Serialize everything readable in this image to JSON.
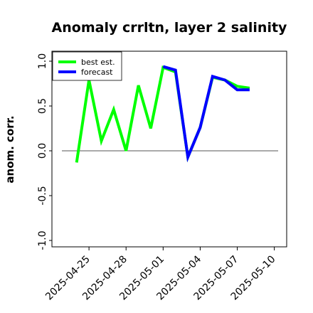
{
  "chart_data": {
    "type": "line",
    "title": "Anomaly crrltn, layer 2 salinity",
    "xlabel": "",
    "ylabel": "anom. corr.",
    "ylim": [
      -1.0,
      1.0
    ],
    "yticks": [
      "1.0",
      "0.5",
      "0.0",
      "-0.5",
      "-1.0"
    ],
    "ytick_values": [
      1.0,
      0.5,
      0.0,
      -0.5,
      -1.0
    ],
    "xlim": [
      "2025-04-22",
      "2025-05-11"
    ],
    "xticks": [
      "2025-04-25",
      "2025-04-28",
      "2025-05-01",
      "2025-05-04",
      "2025-05-07",
      "2025-05-10"
    ],
    "xtick_highlight": "2025-05-01",
    "xtick_highlight_color": "#228B22",
    "reference_line": 0.0,
    "grid": false,
    "legend_position": "top-left",
    "series": [
      {
        "name": "best est.",
        "color": "#00ff00",
        "x": [
          "2025-04-24",
          "2025-04-25",
          "2025-04-26",
          "2025-04-27",
          "2025-04-28",
          "2025-04-29",
          "2025-04-30",
          "2025-05-01",
          "2025-05-02",
          "2025-05-03",
          "2025-05-04",
          "2025-05-05",
          "2025-05-06",
          "2025-05-07",
          "2025-05-08"
        ],
        "values": [
          -0.13,
          0.79,
          0.11,
          0.46,
          0.0,
          0.73,
          0.25,
          0.93,
          0.88,
          -0.07,
          0.26,
          0.82,
          0.79,
          0.72,
          0.7
        ]
      },
      {
        "name": "forecast",
        "color": "#0000ff",
        "x": [
          "2025-05-01",
          "2025-05-02",
          "2025-05-03",
          "2025-05-04",
          "2025-05-05",
          "2025-05-06",
          "2025-05-07",
          "2025-05-08"
        ],
        "values": [
          0.94,
          0.9,
          -0.07,
          0.26,
          0.83,
          0.79,
          0.68,
          0.68
        ]
      }
    ]
  }
}
